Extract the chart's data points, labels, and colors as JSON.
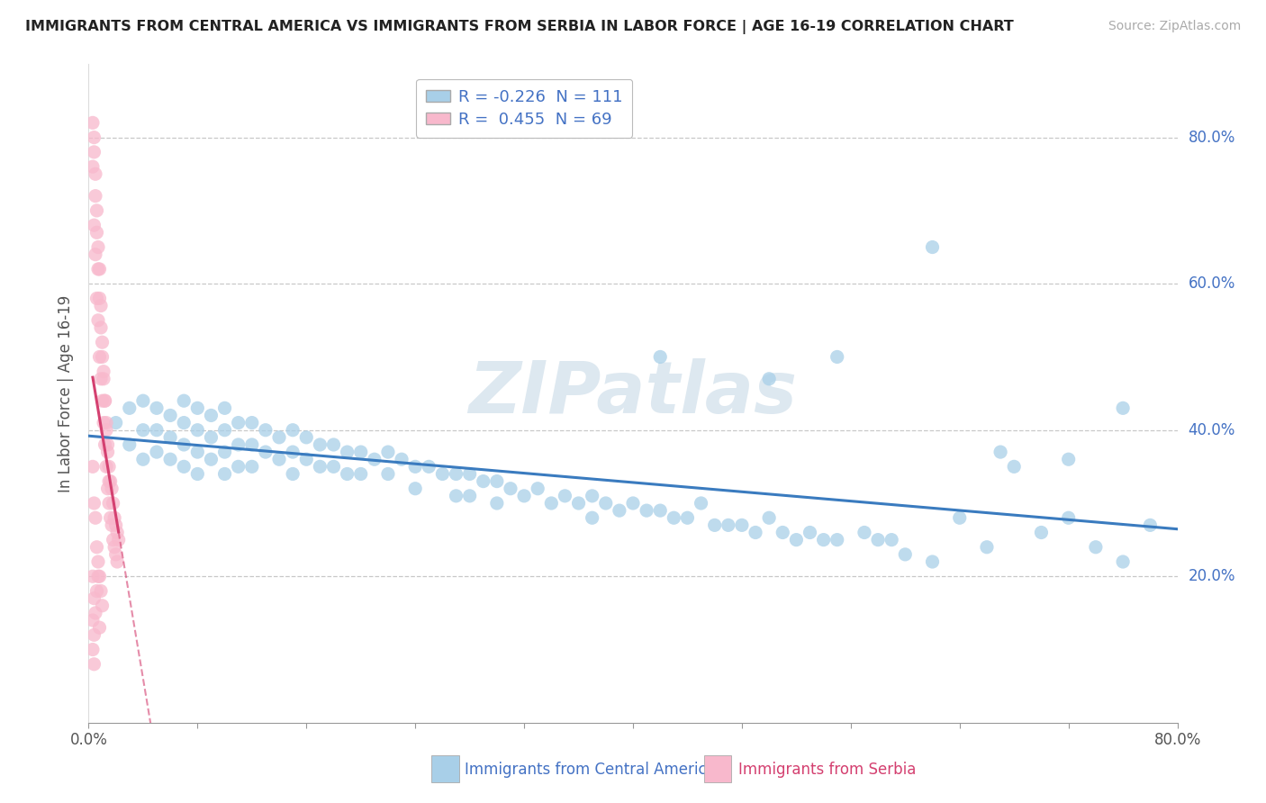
{
  "title": "IMMIGRANTS FROM CENTRAL AMERICA VS IMMIGRANTS FROM SERBIA IN LABOR FORCE | AGE 16-19 CORRELATION CHART",
  "source": "Source: ZipAtlas.com",
  "ylabel": "In Labor Force | Age 16-19",
  "legend_blue": "Immigrants from Central America",
  "legend_pink": "Immigrants from Serbia",
  "R_blue": -0.226,
  "N_blue": 111,
  "R_pink": 0.455,
  "N_pink": 69,
  "xlim": [
    0.0,
    0.8
  ],
  "ylim": [
    0.0,
    0.9
  ],
  "color_blue": "#a8cfe8",
  "color_blue_line": "#3a7bbf",
  "color_pink": "#f8b8cc",
  "color_pink_line": "#d44070",
  "watermark_color": "#dde8f0",
  "watermark_text": "ZIPatlas",
  "blue_x": [
    0.02,
    0.03,
    0.03,
    0.04,
    0.04,
    0.04,
    0.05,
    0.05,
    0.05,
    0.06,
    0.06,
    0.06,
    0.07,
    0.07,
    0.07,
    0.07,
    0.08,
    0.08,
    0.08,
    0.08,
    0.09,
    0.09,
    0.09,
    0.1,
    0.1,
    0.1,
    0.1,
    0.11,
    0.11,
    0.11,
    0.12,
    0.12,
    0.12,
    0.13,
    0.13,
    0.14,
    0.14,
    0.15,
    0.15,
    0.15,
    0.16,
    0.16,
    0.17,
    0.17,
    0.18,
    0.18,
    0.19,
    0.19,
    0.2,
    0.2,
    0.21,
    0.22,
    0.22,
    0.23,
    0.24,
    0.24,
    0.25,
    0.26,
    0.27,
    0.27,
    0.28,
    0.28,
    0.29,
    0.3,
    0.3,
    0.31,
    0.32,
    0.33,
    0.34,
    0.35,
    0.36,
    0.37,
    0.37,
    0.38,
    0.39,
    0.4,
    0.41,
    0.42,
    0.43,
    0.44,
    0.45,
    0.46,
    0.47,
    0.48,
    0.49,
    0.5,
    0.51,
    0.52,
    0.53,
    0.54,
    0.55,
    0.57,
    0.59,
    0.6,
    0.62,
    0.64,
    0.66,
    0.67,
    0.7,
    0.72,
    0.74,
    0.76,
    0.78,
    0.42,
    0.5,
    0.55,
    0.58,
    0.62,
    0.68,
    0.72,
    0.76
  ],
  "blue_y": [
    0.41,
    0.43,
    0.38,
    0.44,
    0.4,
    0.36,
    0.43,
    0.4,
    0.37,
    0.42,
    0.39,
    0.36,
    0.44,
    0.41,
    0.38,
    0.35,
    0.43,
    0.4,
    0.37,
    0.34,
    0.42,
    0.39,
    0.36,
    0.43,
    0.4,
    0.37,
    0.34,
    0.41,
    0.38,
    0.35,
    0.41,
    0.38,
    0.35,
    0.4,
    0.37,
    0.39,
    0.36,
    0.4,
    0.37,
    0.34,
    0.39,
    0.36,
    0.38,
    0.35,
    0.38,
    0.35,
    0.37,
    0.34,
    0.37,
    0.34,
    0.36,
    0.37,
    0.34,
    0.36,
    0.35,
    0.32,
    0.35,
    0.34,
    0.34,
    0.31,
    0.34,
    0.31,
    0.33,
    0.33,
    0.3,
    0.32,
    0.31,
    0.32,
    0.3,
    0.31,
    0.3,
    0.31,
    0.28,
    0.3,
    0.29,
    0.3,
    0.29,
    0.29,
    0.28,
    0.28,
    0.3,
    0.27,
    0.27,
    0.27,
    0.26,
    0.28,
    0.26,
    0.25,
    0.26,
    0.25,
    0.25,
    0.26,
    0.25,
    0.23,
    0.22,
    0.28,
    0.24,
    0.37,
    0.26,
    0.28,
    0.24,
    0.22,
    0.27,
    0.5,
    0.47,
    0.5,
    0.25,
    0.65,
    0.35,
    0.36,
    0.43
  ],
  "pink_x": [
    0.003,
    0.004,
    0.004,
    0.005,
    0.005,
    0.006,
    0.006,
    0.007,
    0.007,
    0.008,
    0.008,
    0.009,
    0.009,
    0.01,
    0.01,
    0.011,
    0.011,
    0.012,
    0.012,
    0.013,
    0.013,
    0.014,
    0.014,
    0.015,
    0.015,
    0.016,
    0.016,
    0.017,
    0.017,
    0.018,
    0.018,
    0.019,
    0.019,
    0.02,
    0.02,
    0.021,
    0.021,
    0.022,
    0.003,
    0.004,
    0.005,
    0.006,
    0.007,
    0.008,
    0.009,
    0.01,
    0.011,
    0.012,
    0.013,
    0.014,
    0.015,
    0.003,
    0.004,
    0.005,
    0.006,
    0.007,
    0.008,
    0.009,
    0.01,
    0.003,
    0.004,
    0.003,
    0.004,
    0.003,
    0.004,
    0.005,
    0.006,
    0.007,
    0.008
  ],
  "pink_y": [
    0.76,
    0.78,
    0.68,
    0.72,
    0.64,
    0.67,
    0.58,
    0.62,
    0.55,
    0.58,
    0.5,
    0.54,
    0.47,
    0.5,
    0.44,
    0.47,
    0.41,
    0.44,
    0.38,
    0.41,
    0.35,
    0.38,
    0.32,
    0.35,
    0.3,
    0.33,
    0.28,
    0.32,
    0.27,
    0.3,
    0.25,
    0.28,
    0.24,
    0.27,
    0.23,
    0.26,
    0.22,
    0.25,
    0.82,
    0.8,
    0.75,
    0.7,
    0.65,
    0.62,
    0.57,
    0.52,
    0.48,
    0.44,
    0.4,
    0.37,
    0.33,
    0.35,
    0.3,
    0.28,
    0.24,
    0.22,
    0.2,
    0.18,
    0.16,
    0.14,
    0.12,
    0.2,
    0.17,
    0.1,
    0.08,
    0.15,
    0.18,
    0.2,
    0.13
  ]
}
